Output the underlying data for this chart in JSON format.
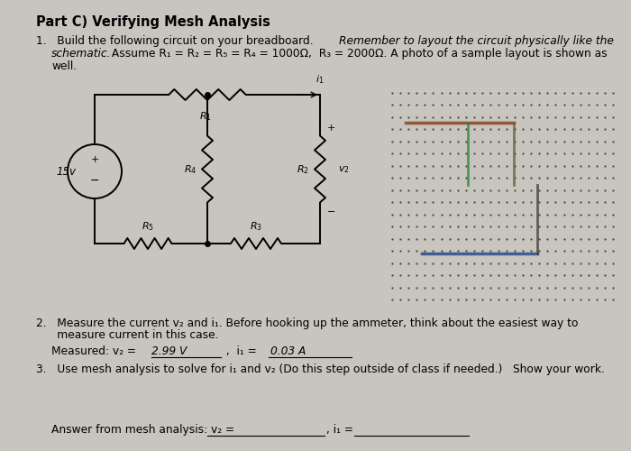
{
  "bg_color": "#c8c4be",
  "text_color": "#000000",
  "title": "Part C) Verifying Mesh Analysis",
  "item1_pre": "1.   Build the following circuit on your breadboard. ",
  "item1_italic": "Remember to layout the circuit physically like the",
  "item1_line2_italic": "schematic.",
  "item1_line2_rest": " Assume R₁ = R₂ = R₅ = R₄ = 1000Ω,  R₃ = 2000Ω. A photo of a sample layout is shown as",
  "item1_line3": "well.",
  "item2_line1": "2.   Measure the current v₂ and i₁. Before hooking up the ammeter, think about the easiest way to",
  "item2_line2": "      measure current in this case.",
  "measured_label": "Measured: v₂ = ",
  "measured_v2": "2.99 V",
  "measured_comma": " ,  i₁ = ",
  "measured_i1": "0.03 A",
  "item3": "3.   Use mesh analysis to solve for i₁ and v₂ (Do this step outside of class if needed.)   Show your work.",
  "answer_label": "Answer from mesh analysis: v₂ = ",
  "answer_i1_label": ", i₁ = ",
  "fs_title": 10.5,
  "fs_body": 8.8,
  "fs_circuit": 8.0
}
